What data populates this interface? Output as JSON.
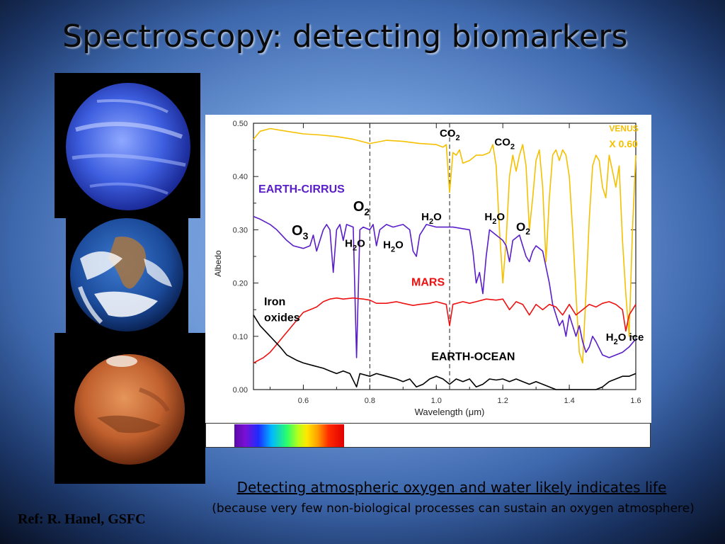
{
  "slide": {
    "title": "Spectroscopy: detecting biomarkers",
    "caption_main": "Detecting atmospheric oxygen and water likely indicates life",
    "caption_sub": "(because very few non-biological processes can sustain an oxygen atmosphere)",
    "reference": "Ref: R. Hanel, GSFC"
  },
  "planets": [
    "venus-image",
    "earth-image",
    "mars-image"
  ],
  "chart_data": {
    "type": "line",
    "title": "",
    "xlabel": "Wavelength (μm)",
    "ylabel": "Albedo",
    "xlim": [
      0.45,
      1.6
    ],
    "ylim": [
      0.0,
      0.5
    ],
    "x_ticks": [
      0.6,
      0.8,
      1.0,
      1.2,
      1.4,
      1.6
    ],
    "x_tick_labels": [
      "0.6",
      "0.8",
      "1.0",
      "1.2",
      "1.4",
      "1.6"
    ],
    "y_ticks": [
      0.0,
      0.1,
      0.2,
      0.3,
      0.4,
      0.5
    ],
    "y_tick_labels": [
      "0.00",
      "0.10",
      "0.20",
      "0.30",
      "0.40",
      "0.50"
    ],
    "reference_lines_x": [
      0.8,
      1.04
    ],
    "series": [
      {
        "name": "VENUS X 0.60",
        "color": "#f5c000",
        "points": [
          [
            0.45,
            0.47
          ],
          [
            0.47,
            0.485
          ],
          [
            0.5,
            0.49
          ],
          [
            0.55,
            0.485
          ],
          [
            0.6,
            0.48
          ],
          [
            0.65,
            0.478
          ],
          [
            0.7,
            0.475
          ],
          [
            0.75,
            0.47
          ],
          [
            0.8,
            0.462
          ],
          [
            0.85,
            0.468
          ],
          [
            0.9,
            0.466
          ],
          [
            0.95,
            0.462
          ],
          [
            1.0,
            0.46
          ],
          [
            1.02,
            0.455
          ],
          [
            1.03,
            0.46
          ],
          [
            1.04,
            0.37
          ],
          [
            1.05,
            0.445
          ],
          [
            1.06,
            0.44
          ],
          [
            1.07,
            0.45
          ],
          [
            1.08,
            0.425
          ],
          [
            1.1,
            0.43
          ],
          [
            1.12,
            0.44
          ],
          [
            1.14,
            0.44
          ],
          [
            1.16,
            0.445
          ],
          [
            1.17,
            0.46
          ],
          [
            1.18,
            0.42
          ],
          [
            1.19,
            0.3
          ],
          [
            1.2,
            0.2
          ],
          [
            1.21,
            0.28
          ],
          [
            1.22,
            0.4
          ],
          [
            1.23,
            0.44
          ],
          [
            1.24,
            0.41
          ],
          [
            1.25,
            0.44
          ],
          [
            1.26,
            0.46
          ],
          [
            1.27,
            0.42
          ],
          [
            1.28,
            0.3
          ],
          [
            1.29,
            0.36
          ],
          [
            1.3,
            0.43
          ],
          [
            1.31,
            0.45
          ],
          [
            1.32,
            0.38
          ],
          [
            1.33,
            0.24
          ],
          [
            1.34,
            0.36
          ],
          [
            1.35,
            0.44
          ],
          [
            1.36,
            0.45
          ],
          [
            1.37,
            0.43
          ],
          [
            1.38,
            0.45
          ],
          [
            1.39,
            0.44
          ],
          [
            1.4,
            0.4
          ],
          [
            1.41,
            0.3
          ],
          [
            1.42,
            0.18
          ],
          [
            1.43,
            0.07
          ],
          [
            1.44,
            0.05
          ],
          [
            1.45,
            0.18
          ],
          [
            1.46,
            0.32
          ],
          [
            1.47,
            0.42
          ],
          [
            1.48,
            0.44
          ],
          [
            1.49,
            0.43
          ],
          [
            1.5,
            0.38
          ],
          [
            1.51,
            0.36
          ],
          [
            1.52,
            0.44
          ],
          [
            1.53,
            0.41
          ],
          [
            1.54,
            0.38
          ],
          [
            1.55,
            0.42
          ],
          [
            1.56,
            0.28
          ],
          [
            1.57,
            0.18
          ],
          [
            1.58,
            0.1
          ],
          [
            1.59,
            0.3
          ],
          [
            1.6,
            0.44
          ]
        ]
      },
      {
        "name": "EARTH-CIRRUS",
        "color": "#5a1ec8",
        "points": [
          [
            0.45,
            0.325
          ],
          [
            0.47,
            0.32
          ],
          [
            0.5,
            0.31
          ],
          [
            0.52,
            0.3
          ],
          [
            0.55,
            0.28
          ],
          [
            0.57,
            0.27
          ],
          [
            0.6,
            0.265
          ],
          [
            0.62,
            0.27
          ],
          [
            0.63,
            0.29
          ],
          [
            0.64,
            0.26
          ],
          [
            0.65,
            0.28
          ],
          [
            0.66,
            0.3
          ],
          [
            0.67,
            0.31
          ],
          [
            0.68,
            0.3
          ],
          [
            0.69,
            0.22
          ],
          [
            0.7,
            0.3
          ],
          [
            0.71,
            0.31
          ],
          [
            0.72,
            0.28
          ],
          [
            0.73,
            0.31
          ],
          [
            0.75,
            0.305
          ],
          [
            0.76,
            0.06
          ],
          [
            0.77,
            0.3
          ],
          [
            0.78,
            0.305
          ],
          [
            0.8,
            0.3
          ],
          [
            0.81,
            0.31
          ],
          [
            0.82,
            0.27
          ],
          [
            0.83,
            0.3
          ],
          [
            0.85,
            0.31
          ],
          [
            0.87,
            0.305
          ],
          [
            0.9,
            0.31
          ],
          [
            0.92,
            0.3
          ],
          [
            0.93,
            0.26
          ],
          [
            0.94,
            0.25
          ],
          [
            0.95,
            0.29
          ],
          [
            0.97,
            0.31
          ],
          [
            1.0,
            0.305
          ],
          [
            1.05,
            0.305
          ],
          [
            1.1,
            0.3
          ],
          [
            1.11,
            0.26
          ],
          [
            1.12,
            0.2
          ],
          [
            1.13,
            0.22
          ],
          [
            1.14,
            0.18
          ],
          [
            1.15,
            0.25
          ],
          [
            1.16,
            0.3
          ],
          [
            1.18,
            0.29
          ],
          [
            1.2,
            0.28
          ],
          [
            1.21,
            0.27
          ],
          [
            1.22,
            0.24
          ],
          [
            1.23,
            0.28
          ],
          [
            1.25,
            0.29
          ],
          [
            1.26,
            0.27
          ],
          [
            1.27,
            0.25
          ],
          [
            1.28,
            0.24
          ],
          [
            1.29,
            0.26
          ],
          [
            1.3,
            0.27
          ],
          [
            1.32,
            0.26
          ],
          [
            1.33,
            0.23
          ],
          [
            1.34,
            0.2
          ],
          [
            1.35,
            0.16
          ],
          [
            1.36,
            0.14
          ],
          [
            1.37,
            0.12
          ],
          [
            1.38,
            0.13
          ],
          [
            1.39,
            0.1
          ],
          [
            1.4,
            0.14
          ],
          [
            1.41,
            0.12
          ],
          [
            1.42,
            0.1
          ],
          [
            1.43,
            0.12
          ],
          [
            1.44,
            0.09
          ],
          [
            1.45,
            0.07
          ],
          [
            1.46,
            0.08
          ],
          [
            1.47,
            0.1
          ],
          [
            1.48,
            0.09
          ],
          [
            1.5,
            0.065
          ],
          [
            1.52,
            0.06
          ],
          [
            1.54,
            0.065
          ],
          [
            1.56,
            0.07
          ],
          [
            1.58,
            0.08
          ],
          [
            1.6,
            0.095
          ]
        ]
      },
      {
        "name": "MARS",
        "color": "#ee1111",
        "points": [
          [
            0.45,
            0.05
          ],
          [
            0.48,
            0.06
          ],
          [
            0.5,
            0.07
          ],
          [
            0.52,
            0.085
          ],
          [
            0.54,
            0.1
          ],
          [
            0.56,
            0.115
          ],
          [
            0.58,
            0.13
          ],
          [
            0.6,
            0.145
          ],
          [
            0.62,
            0.15
          ],
          [
            0.64,
            0.155
          ],
          [
            0.66,
            0.165
          ],
          [
            0.68,
            0.17
          ],
          [
            0.7,
            0.172
          ],
          [
            0.72,
            0.17
          ],
          [
            0.75,
            0.172
          ],
          [
            0.78,
            0.17
          ],
          [
            0.8,
            0.168
          ],
          [
            0.82,
            0.162
          ],
          [
            0.85,
            0.162
          ],
          [
            0.88,
            0.165
          ],
          [
            0.9,
            0.162
          ],
          [
            0.93,
            0.158
          ],
          [
            0.95,
            0.16
          ],
          [
            0.98,
            0.162
          ],
          [
            1.0,
            0.165
          ],
          [
            1.03,
            0.16
          ],
          [
            1.04,
            0.12
          ],
          [
            1.05,
            0.16
          ],
          [
            1.08,
            0.165
          ],
          [
            1.1,
            0.162
          ],
          [
            1.12,
            0.165
          ],
          [
            1.15,
            0.17
          ],
          [
            1.18,
            0.168
          ],
          [
            1.2,
            0.17
          ],
          [
            1.22,
            0.15
          ],
          [
            1.24,
            0.165
          ],
          [
            1.26,
            0.16
          ],
          [
            1.28,
            0.14
          ],
          [
            1.3,
            0.16
          ],
          [
            1.32,
            0.15
          ],
          [
            1.34,
            0.16
          ],
          [
            1.36,
            0.155
          ],
          [
            1.38,
            0.14
          ],
          [
            1.4,
            0.16
          ],
          [
            1.42,
            0.14
          ],
          [
            1.44,
            0.15
          ],
          [
            1.46,
            0.16
          ],
          [
            1.48,
            0.155
          ],
          [
            1.5,
            0.162
          ],
          [
            1.52,
            0.165
          ],
          [
            1.54,
            0.16
          ],
          [
            1.56,
            0.15
          ],
          [
            1.57,
            0.11
          ],
          [
            1.58,
            0.14
          ],
          [
            1.6,
            0.16
          ]
        ]
      },
      {
        "name": "EARTH-OCEAN",
        "color": "#000000",
        "points": [
          [
            0.45,
            0.14
          ],
          [
            0.47,
            0.12
          ],
          [
            0.5,
            0.1
          ],
          [
            0.53,
            0.08
          ],
          [
            0.55,
            0.065
          ],
          [
            0.58,
            0.055
          ],
          [
            0.6,
            0.05
          ],
          [
            0.63,
            0.045
          ],
          [
            0.66,
            0.04
          ],
          [
            0.68,
            0.035
          ],
          [
            0.7,
            0.03
          ],
          [
            0.72,
            0.035
          ],
          [
            0.74,
            0.03
          ],
          [
            0.76,
            0.005
          ],
          [
            0.77,
            0.03
          ],
          [
            0.8,
            0.025
          ],
          [
            0.82,
            0.03
          ],
          [
            0.85,
            0.025
          ],
          [
            0.88,
            0.02
          ],
          [
            0.9,
            0.015
          ],
          [
            0.92,
            0.02
          ],
          [
            0.94,
            0.005
          ],
          [
            0.96,
            0.01
          ],
          [
            0.98,
            0.02
          ],
          [
            1.0,
            0.025
          ],
          [
            1.02,
            0.02
          ],
          [
            1.04,
            0.01
          ],
          [
            1.06,
            0.02
          ],
          [
            1.08,
            0.015
          ],
          [
            1.1,
            0.02
          ],
          [
            1.12,
            0.005
          ],
          [
            1.14,
            0.01
          ],
          [
            1.16,
            0.02
          ],
          [
            1.18,
            0.018
          ],
          [
            1.2,
            0.02
          ],
          [
            1.22,
            0.015
          ],
          [
            1.24,
            0.02
          ],
          [
            1.26,
            0.015
          ],
          [
            1.28,
            0.01
          ],
          [
            1.3,
            0.015
          ],
          [
            1.32,
            0.01
          ],
          [
            1.34,
            0.005
          ],
          [
            1.36,
            0.0
          ],
          [
            1.4,
            0.0
          ],
          [
            1.44,
            0.0
          ],
          [
            1.48,
            0.0
          ],
          [
            1.5,
            0.005
          ],
          [
            1.52,
            0.015
          ],
          [
            1.54,
            0.02
          ],
          [
            1.56,
            0.025
          ],
          [
            1.58,
            0.025
          ],
          [
            1.6,
            0.03
          ]
        ]
      }
    ],
    "annotations": [
      {
        "text": "VENUS",
        "x": 1.52,
        "y": 0.485,
        "color": "#f5c000",
        "size": 12
      },
      {
        "text": "X 0.60",
        "x": 1.52,
        "y": 0.455,
        "color": "#f5c000",
        "size": 14
      },
      {
        "text": "EARTH-CIRRUS",
        "x": 0.465,
        "y": 0.37,
        "color": "#5a1ec8",
        "size": 16
      },
      {
        "text": "MARS",
        "x": 0.925,
        "y": 0.195,
        "color": "#ee1111",
        "size": 16
      },
      {
        "text": "EARTH-OCEAN",
        "x": 0.985,
        "y": 0.055,
        "color": "#000000",
        "size": 16
      },
      {
        "text": "Iron",
        "x": 0.482,
        "y": 0.158,
        "color": "#000000",
        "size": 16
      },
      {
        "text": "oxides",
        "x": 0.482,
        "y": 0.128,
        "color": "#000000",
        "size": 16
      }
    ],
    "molecule_labels": [
      {
        "base": "CO",
        "sub": "2",
        "suffix": "",
        "x": 1.01,
        "y": 0.475,
        "size": 15
      },
      {
        "base": "CO",
        "sub": "2",
        "suffix": "",
        "x": 1.175,
        "y": 0.458,
        "size": 15
      },
      {
        "base": "O",
        "sub": "2",
        "suffix": "",
        "x": 0.75,
        "y": 0.335,
        "size": 20
      },
      {
        "base": "H",
        "sub": "2",
        "suffix": "O",
        "x": 0.955,
        "y": 0.318,
        "size": 15
      },
      {
        "base": "H",
        "sub": "2",
        "suffix": "O",
        "x": 1.145,
        "y": 0.318,
        "size": 15
      },
      {
        "base": "O",
        "sub": "2",
        "suffix": "",
        "x": 1.24,
        "y": 0.298,
        "size": 17
      },
      {
        "base": "O",
        "sub": "3",
        "suffix": "",
        "x": 0.565,
        "y": 0.29,
        "size": 20
      },
      {
        "base": "H",
        "sub": "2",
        "suffix": "O",
        "x": 0.725,
        "y": 0.268,
        "size": 15
      },
      {
        "base": "H",
        "sub": "2",
        "suffix": "O",
        "x": 0.84,
        "y": 0.265,
        "size": 15
      },
      {
        "base": "H",
        "sub": "2",
        "suffix": "O ice",
        "x": 1.51,
        "y": 0.092,
        "size": 15
      }
    ]
  }
}
